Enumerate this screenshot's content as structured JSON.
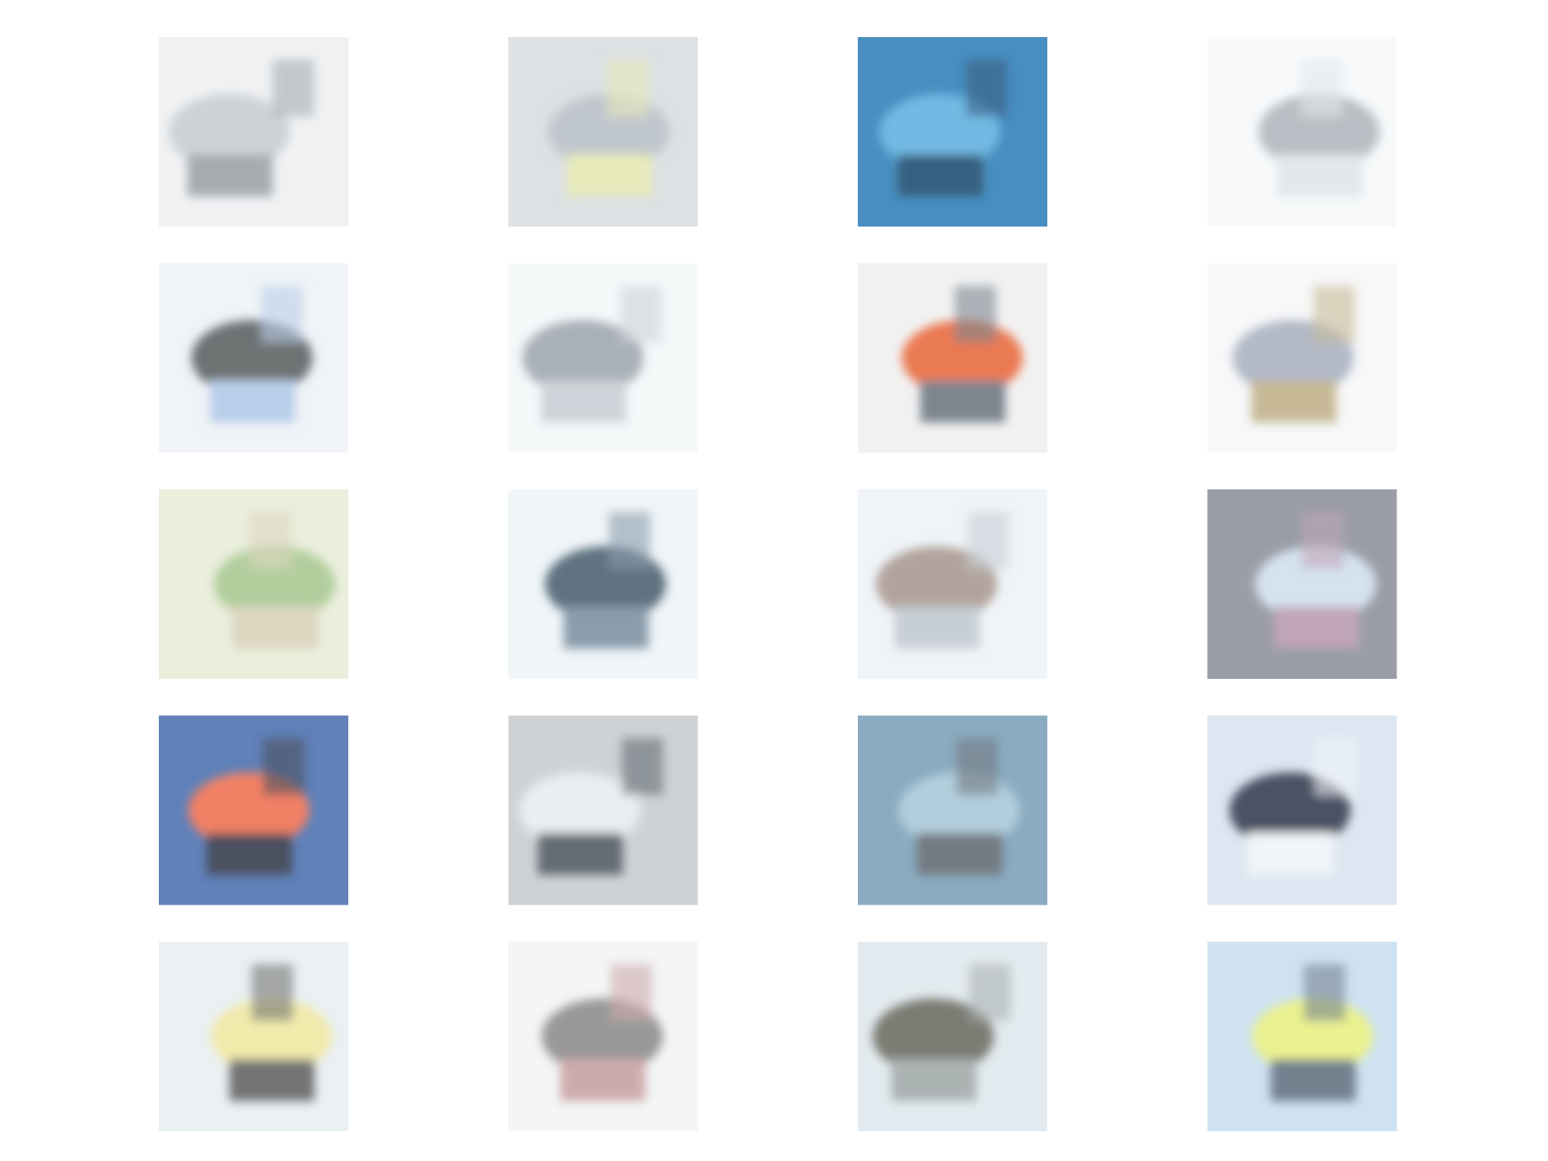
{
  "grid": {
    "rows": 5,
    "columns": 4
  }
}
